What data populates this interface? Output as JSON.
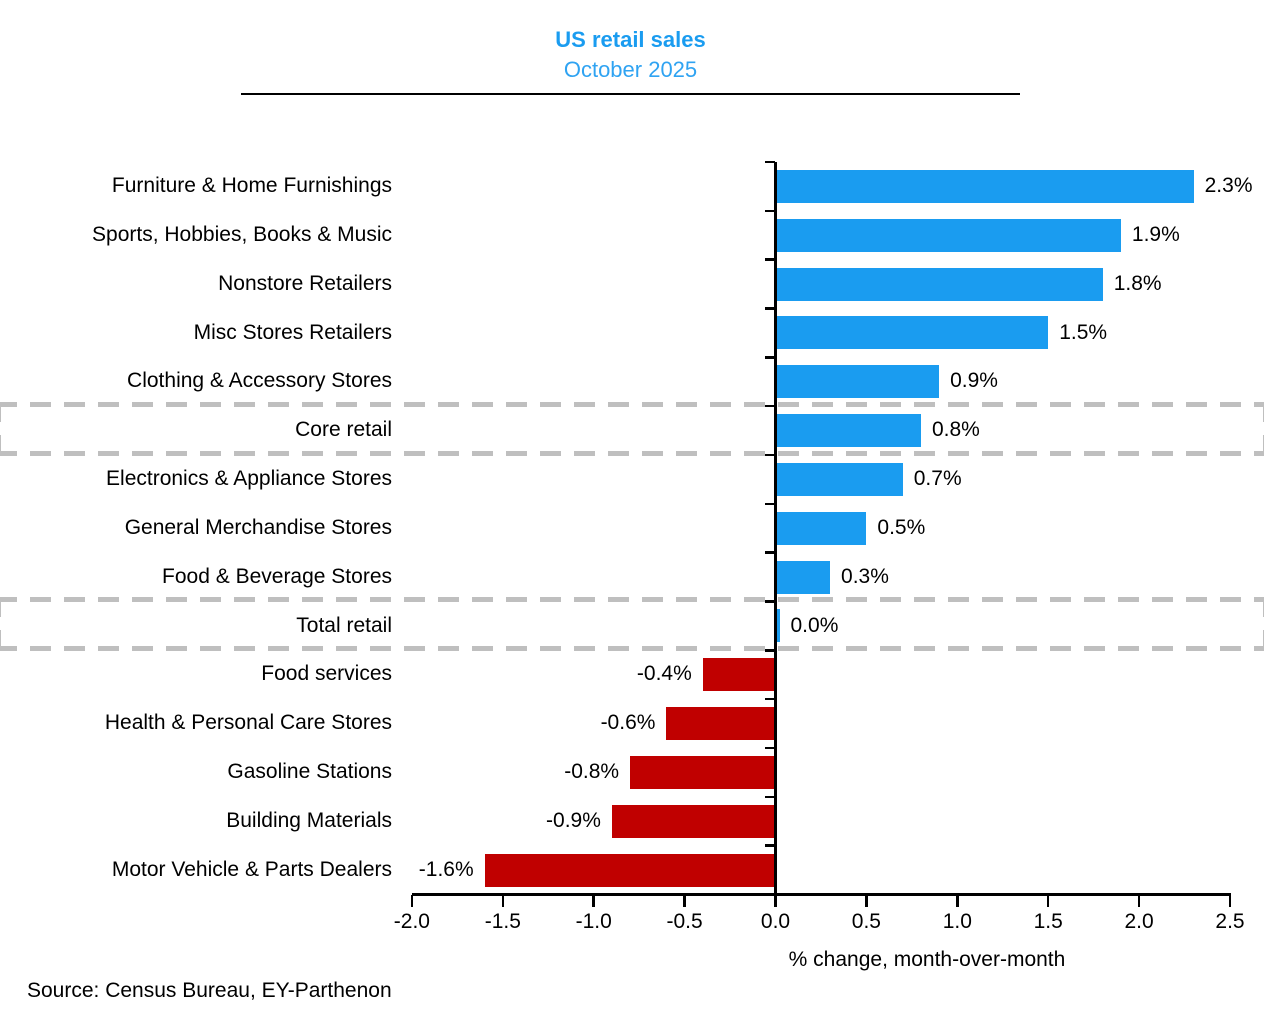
{
  "title": "US retail sales",
  "subtitle": "October 2025",
  "source": "Source: Census Bureau, EY-Parthenon",
  "chart_data": {
    "type": "bar",
    "orientation": "horizontal",
    "title": "US retail sales",
    "subtitle": "October 2025",
    "xlabel": "% change, month-over-month",
    "xlim": [
      -2.0,
      2.5
    ],
    "xticks": [
      -2.0,
      -1.5,
      -1.0,
      -0.5,
      0.0,
      0.5,
      1.0,
      1.5,
      2.0,
      2.5
    ],
    "xtick_labels": [
      "-2.0",
      "-1.5",
      "-1.0",
      "-0.5",
      "0.0",
      "0.5",
      "1.0",
      "1.5",
      "2.0",
      "2.5"
    ],
    "grid": false,
    "legend": "none",
    "categories": [
      "Furniture & Home Furnishings",
      "Sports, Hobbies, Books & Music",
      "Nonstore Retailers",
      "Misc Stores Retailers",
      "Clothing & Accessory Stores",
      "Core retail",
      "Electronics & Appliance Stores",
      "General Merchandise Stores",
      "Food & Beverage Stores",
      "Total retail",
      "Food services",
      "Health & Personal Care Stores",
      "Gasoline Stations",
      "Building Materials",
      "Motor Vehicle & Parts Dealers"
    ],
    "values": [
      2.3,
      1.9,
      1.8,
      1.5,
      0.9,
      0.8,
      0.7,
      0.5,
      0.3,
      0.0,
      -0.4,
      -0.6,
      -0.8,
      -0.9,
      -1.6
    ],
    "data_labels": [
      "2.3%",
      "1.9%",
      "1.8%",
      "1.5%",
      "0.9%",
      "0.8%",
      "0.7%",
      "0.5%",
      "0.3%",
      "0.0%",
      "-0.4%",
      "-0.6%",
      "-0.8%",
      "-0.9%",
      "-1.6%"
    ],
    "highlighted_categories": [
      "Core retail",
      "Total retail"
    ],
    "colors": {
      "positive_bar": "#1A9CF0",
      "negative_bar": "#C00000",
      "title_text": "#1A9CF0",
      "subtitle_text": "#2FA3F2",
      "highlight_box": "#BFBFBF",
      "axis": "#000000",
      "text": "#000000"
    }
  }
}
